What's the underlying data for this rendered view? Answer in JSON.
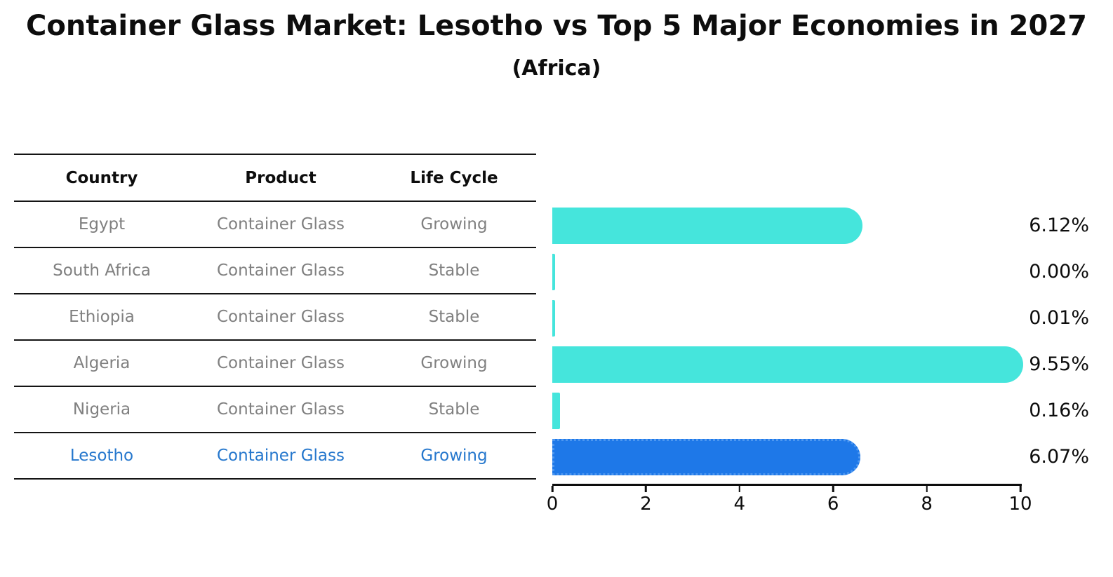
{
  "header": {
    "title": "Container Glass Market: Lesotho vs Top 5 Major Economies in 2027",
    "subtitle": "(Africa)"
  },
  "table": {
    "headers": {
      "country": "Country",
      "product": "Product",
      "life_cycle": "Life Cycle"
    },
    "rows": [
      {
        "country": "Egypt",
        "product": "Container Glass",
        "life_cycle": "Growing",
        "highlight": false
      },
      {
        "country": "South Africa",
        "product": "Container Glass",
        "life_cycle": "Stable",
        "highlight": false
      },
      {
        "country": "Ethiopia",
        "product": "Container Glass",
        "life_cycle": "Stable",
        "highlight": false
      },
      {
        "country": "Algeria",
        "product": "Container Glass",
        "life_cycle": "Growing",
        "highlight": false
      },
      {
        "country": "Nigeria",
        "product": "Container Glass",
        "life_cycle": "Stable",
        "highlight": false
      },
      {
        "country": "Lesotho",
        "product": "Container Glass",
        "life_cycle": "Growing",
        "highlight": true
      }
    ]
  },
  "chart_data": {
    "type": "bar",
    "orientation": "horizontal",
    "title": "Container Glass Market: Lesotho vs Top 5 Major Economies in 2027",
    "subtitle": "(Africa)",
    "categories": [
      "Egypt",
      "South Africa",
      "Ethiopia",
      "Algeria",
      "Nigeria",
      "Lesotho"
    ],
    "values": [
      6.12,
      0.0,
      0.01,
      9.55,
      0.16,
      6.07
    ],
    "value_labels": [
      "6.12%",
      "0.00%",
      "0.01%",
      "9.55%",
      "0.16%",
      "6.07%"
    ],
    "xlim": [
      0,
      10
    ],
    "x_ticks": [
      0,
      2,
      4,
      6,
      8,
      10
    ],
    "grid": false,
    "legend": "none",
    "highlight_index": 5
  },
  "colors": {
    "bar": "#45E5DC",
    "highlight_bar": "#1E78E8",
    "highlight_bar_border": "#4D97F0",
    "highlight_text": "#2577CD",
    "row_text": "#808080",
    "heading_text": "#0d0d0d"
  }
}
